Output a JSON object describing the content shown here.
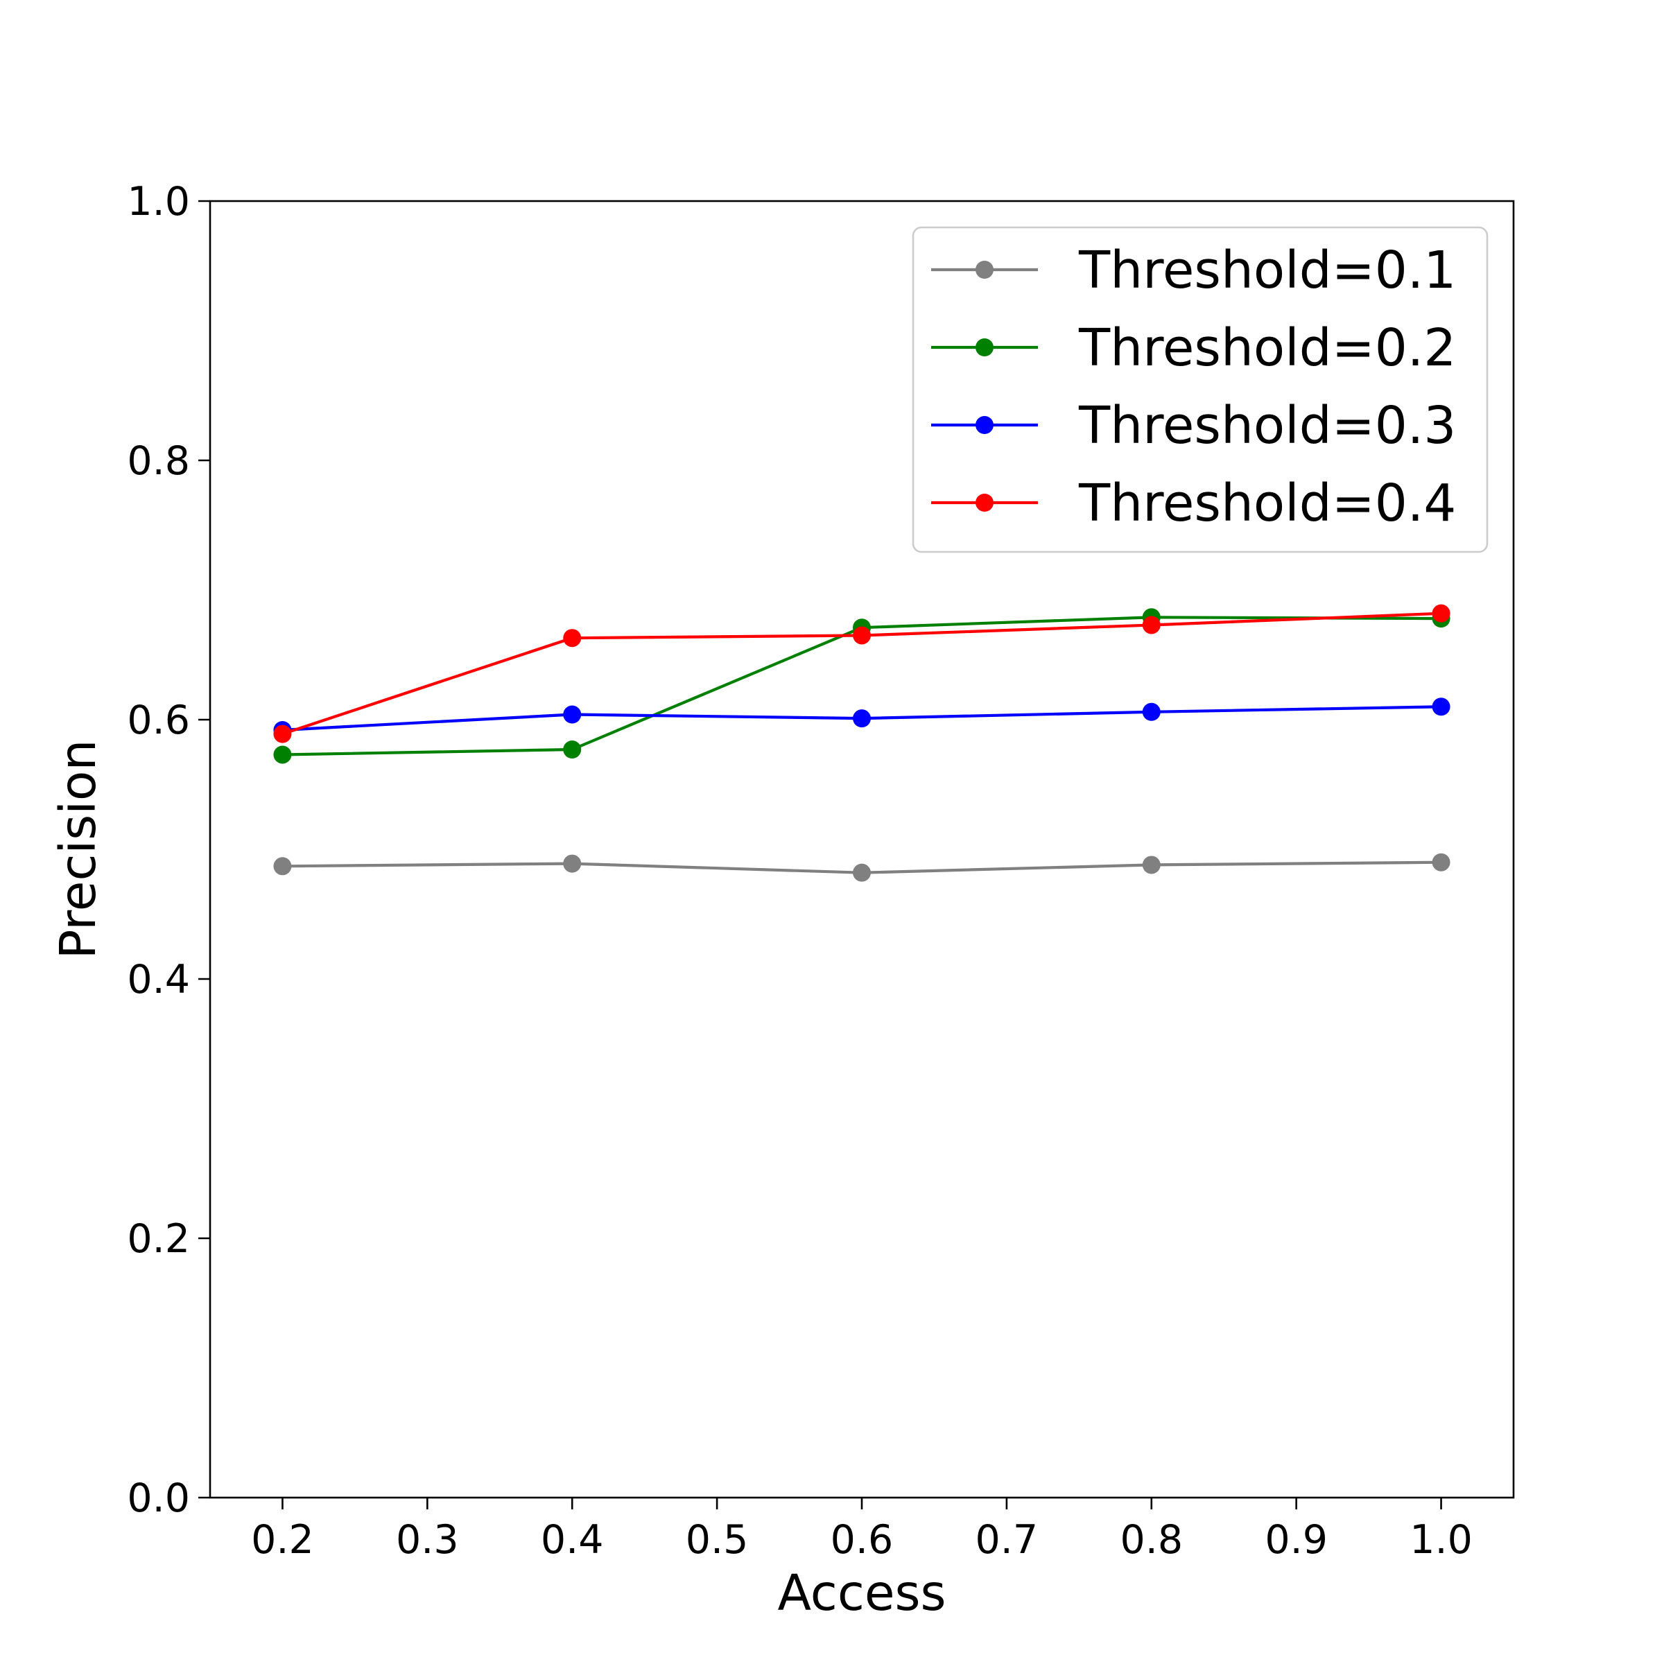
{
  "chart_data": {
    "type": "line",
    "title": "",
    "xlabel": "Access",
    "ylabel": "Precision",
    "xlim": [
      0.15,
      1.05
    ],
    "ylim": [
      0.0,
      1.0
    ],
    "xticks": [
      "0.2",
      "0.3",
      "0.4",
      "0.5",
      "0.6",
      "0.7",
      "0.8",
      "0.9",
      "1.0"
    ],
    "yticks": [
      "0.0",
      "0.2",
      "0.4",
      "0.6",
      "0.8",
      "1.0"
    ],
    "grid": false,
    "legend_position": "top-right",
    "x": [
      0.2,
      0.4,
      0.6,
      0.8,
      1.0
    ],
    "series": [
      {
        "name": "Threshold=0.1",
        "color": "#808080",
        "values": [
          0.487,
          0.489,
          0.482,
          0.488,
          0.49
        ]
      },
      {
        "name": "Threshold=0.2",
        "color": "#008000",
        "values": [
          0.573,
          0.577,
          0.671,
          0.679,
          0.678
        ]
      },
      {
        "name": "Threshold=0.3",
        "color": "#0000ff",
        "values": [
          0.592,
          0.604,
          0.601,
          0.606,
          0.61
        ]
      },
      {
        "name": "Threshold=0.4",
        "color": "#ff0000",
        "values": [
          0.589,
          0.663,
          0.665,
          0.673,
          0.682
        ]
      }
    ]
  }
}
